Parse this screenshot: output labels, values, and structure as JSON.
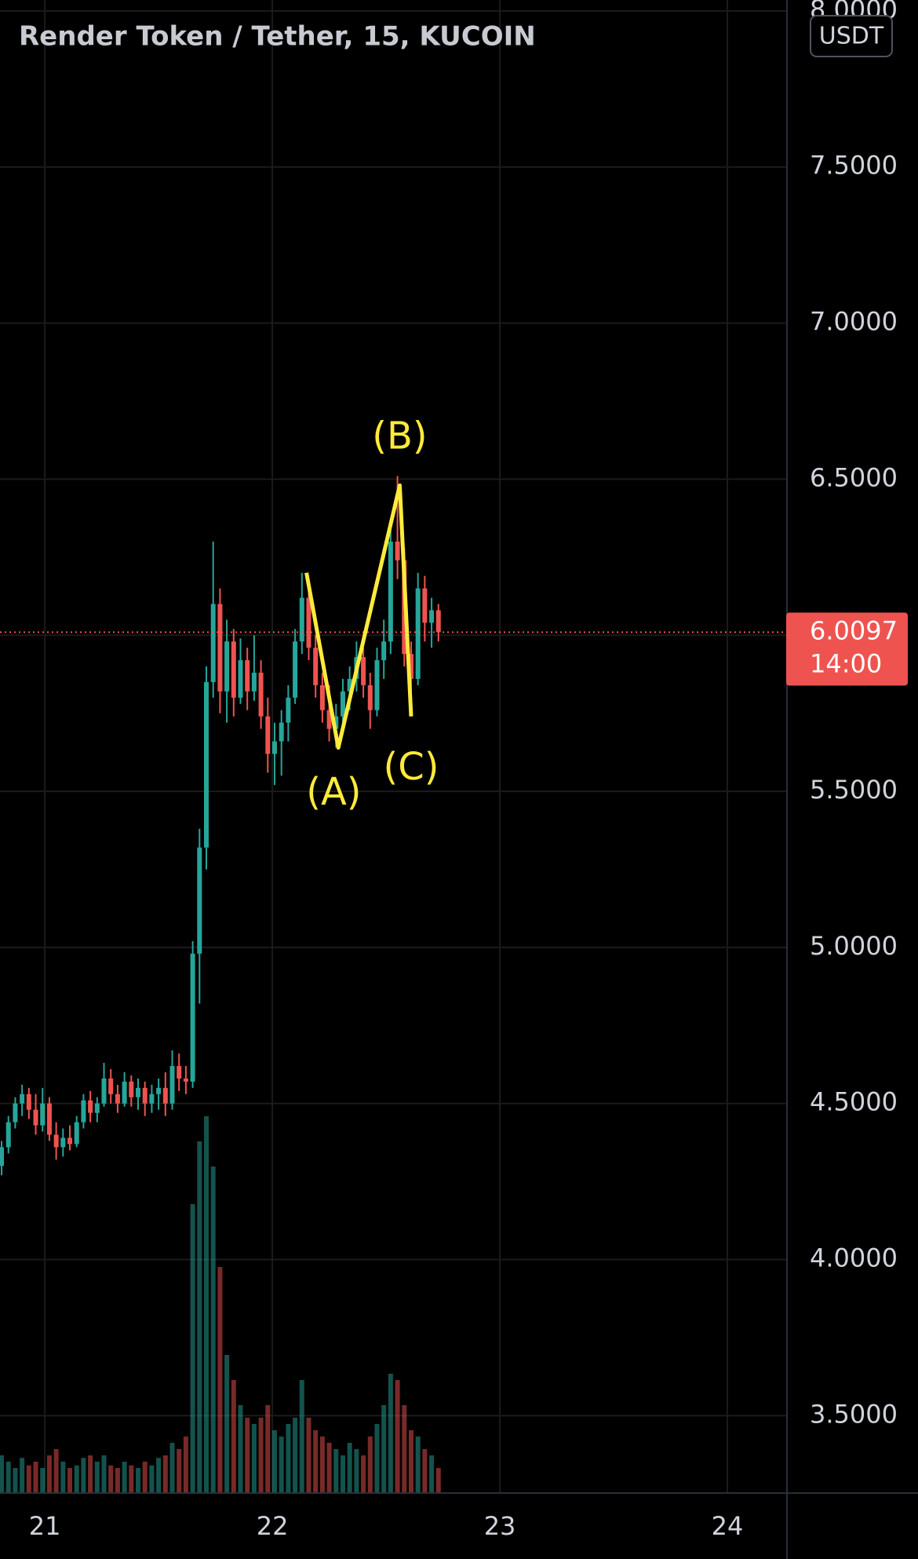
{
  "chart_data": {
    "type": "candlestick",
    "title": "Render Token / Tether, 15, KUCOIN",
    "currency": "USDT",
    "up_color": "#26a69a",
    "down_color": "#ef5350",
    "grid": true,
    "xlim": [
      20.803,
      24.262
    ],
    "xticks": [
      21,
      22,
      23,
      24
    ],
    "ylim": [
      3.252,
      8.035
    ],
    "yticks": [
      {
        "value": 3.5,
        "label": "3.5000"
      },
      {
        "value": 4.0,
        "label": "4.0000"
      },
      {
        "value": 4.5,
        "label": "4.5000"
      },
      {
        "value": 5.0,
        "label": "5.0000"
      },
      {
        "value": 5.5,
        "label": "5.5000"
      },
      {
        "value": 6.0,
        "label": "6.0000"
      },
      {
        "value": 6.5,
        "label": "6.5000"
      },
      {
        "value": 7.0,
        "label": "7.0000"
      },
      {
        "value": 7.5,
        "label": "7.5000"
      },
      {
        "value": 8.0,
        "label": "8.0000"
      }
    ],
    "x": [
      20.81,
      20.84,
      20.87,
      20.9,
      20.93,
      20.96,
      20.99,
      21.02,
      21.05,
      21.08,
      21.11,
      21.14,
      21.17,
      21.2,
      21.23,
      21.26,
      21.29,
      21.32,
      21.35,
      21.38,
      21.41,
      21.44,
      21.47,
      21.5,
      21.53,
      21.56,
      21.59,
      21.62,
      21.65,
      21.68,
      21.71,
      21.74,
      21.77,
      21.8,
      21.83,
      21.86,
      21.89,
      21.92,
      21.95,
      21.98,
      22.01,
      22.04,
      22.07,
      22.1,
      22.13,
      22.16,
      22.19,
      22.22,
      22.25,
      22.28,
      22.31,
      22.34,
      22.37,
      22.4,
      22.43,
      22.46,
      22.49,
      22.52,
      22.55,
      22.58,
      22.61,
      22.64,
      22.67,
      22.7,
      22.73
    ],
    "open": [
      4.3,
      4.36,
      4.44,
      4.5,
      4.53,
      4.48,
      4.43,
      4.5,
      4.4,
      4.36,
      4.39,
      4.37,
      4.44,
      4.51,
      4.47,
      4.5,
      4.58,
      4.53,
      4.5,
      4.57,
      4.52,
      4.55,
      4.5,
      4.53,
      4.55,
      4.5,
      4.62,
      4.58,
      4.57,
      4.98,
      5.32,
      5.85,
      6.1,
      5.82,
      5.98,
      5.8,
      5.92,
      5.82,
      5.88,
      5.74,
      5.62,
      5.66,
      5.72,
      5.8,
      5.98,
      6.12,
      5.96,
      5.84,
      5.76,
      5.7,
      5.74,
      5.82,
      5.86,
      5.93,
      5.84,
      5.76,
      5.92,
      5.98,
      6.3,
      6.24,
      5.94,
      5.86,
      6.15,
      6.04,
      6.08
    ],
    "high": [
      4.38,
      4.46,
      4.52,
      4.56,
      4.55,
      4.53,
      4.55,
      4.52,
      4.44,
      4.42,
      4.43,
      4.46,
      4.53,
      4.54,
      4.52,
      4.63,
      4.61,
      4.56,
      4.6,
      4.59,
      4.58,
      4.57,
      4.56,
      4.58,
      4.6,
      4.67,
      4.66,
      4.62,
      5.02,
      5.38,
      5.9,
      6.3,
      6.15,
      6.05,
      6.02,
      5.99,
      5.96,
      6.0,
      5.92,
      5.8,
      5.72,
      5.76,
      5.84,
      6.02,
      6.2,
      6.15,
      6.0,
      5.88,
      5.84,
      5.78,
      5.86,
      5.9,
      5.98,
      5.96,
      5.88,
      5.96,
      6.05,
      6.36,
      6.51,
      6.28,
      5.98,
      6.2,
      6.19,
      6.12,
      6.1
    ],
    "low": [
      4.27,
      4.34,
      4.42,
      4.46,
      4.45,
      4.4,
      4.41,
      4.38,
      4.32,
      4.33,
      4.35,
      4.36,
      4.42,
      4.44,
      4.44,
      4.49,
      4.5,
      4.47,
      4.49,
      4.49,
      4.48,
      4.46,
      4.47,
      4.48,
      4.46,
      4.48,
      4.54,
      4.53,
      4.55,
      4.82,
      5.25,
      5.8,
      5.75,
      5.72,
      5.74,
      5.78,
      5.76,
      5.79,
      5.7,
      5.56,
      5.52,
      5.55,
      5.66,
      5.78,
      5.94,
      5.92,
      5.8,
      5.72,
      5.66,
      5.64,
      5.7,
      5.76,
      5.82,
      5.8,
      5.7,
      5.74,
      5.86,
      5.94,
      6.18,
      5.9,
      5.76,
      5.84,
      5.98,
      5.96,
      5.98
    ],
    "close": [
      4.36,
      4.44,
      4.5,
      4.53,
      4.48,
      4.43,
      4.5,
      4.4,
      4.36,
      4.39,
      4.37,
      4.44,
      4.51,
      4.47,
      4.5,
      4.58,
      4.53,
      4.5,
      4.57,
      4.52,
      4.55,
      4.5,
      4.53,
      4.55,
      4.5,
      4.62,
      4.58,
      4.57,
      4.98,
      5.32,
      5.85,
      6.1,
      5.82,
      5.98,
      5.8,
      5.92,
      5.82,
      5.88,
      5.74,
      5.62,
      5.66,
      5.72,
      5.8,
      5.98,
      6.12,
      5.96,
      5.84,
      5.76,
      5.7,
      5.74,
      5.82,
      5.86,
      5.93,
      5.84,
      5.76,
      5.92,
      5.98,
      6.3,
      6.24,
      5.94,
      5.86,
      6.15,
      6.04,
      6.08,
      6.0097
    ],
    "volume": [
      30,
      25,
      20,
      28,
      22,
      25,
      20,
      30,
      35,
      25,
      20,
      22,
      28,
      30,
      25,
      30,
      22,
      20,
      25,
      22,
      20,
      25,
      22,
      28,
      30,
      40,
      35,
      45,
      230,
      280,
      300,
      260,
      180,
      110,
      90,
      70,
      60,
      55,
      60,
      70,
      50,
      45,
      55,
      60,
      90,
      60,
      50,
      45,
      40,
      35,
      30,
      40,
      35,
      30,
      45,
      55,
      70,
      95,
      90,
      70,
      50,
      45,
      35,
      30,
      20
    ],
    "last_price": 6.0097,
    "countdown": "14:00",
    "annotations": {
      "color": "#ffeb3b",
      "wave": {
        "x": [
          22.15,
          22.29,
          22.56,
          22.61
        ],
        "y": [
          6.2,
          5.64,
          6.48,
          5.74
        ]
      },
      "labels": [
        {
          "text": "(A)",
          "x": 22.27,
          "y": 5.49
        },
        {
          "text": "(B)",
          "x": 22.56,
          "y": 6.63
        },
        {
          "text": "(C)",
          "x": 22.61,
          "y": 5.57
        }
      ]
    }
  }
}
